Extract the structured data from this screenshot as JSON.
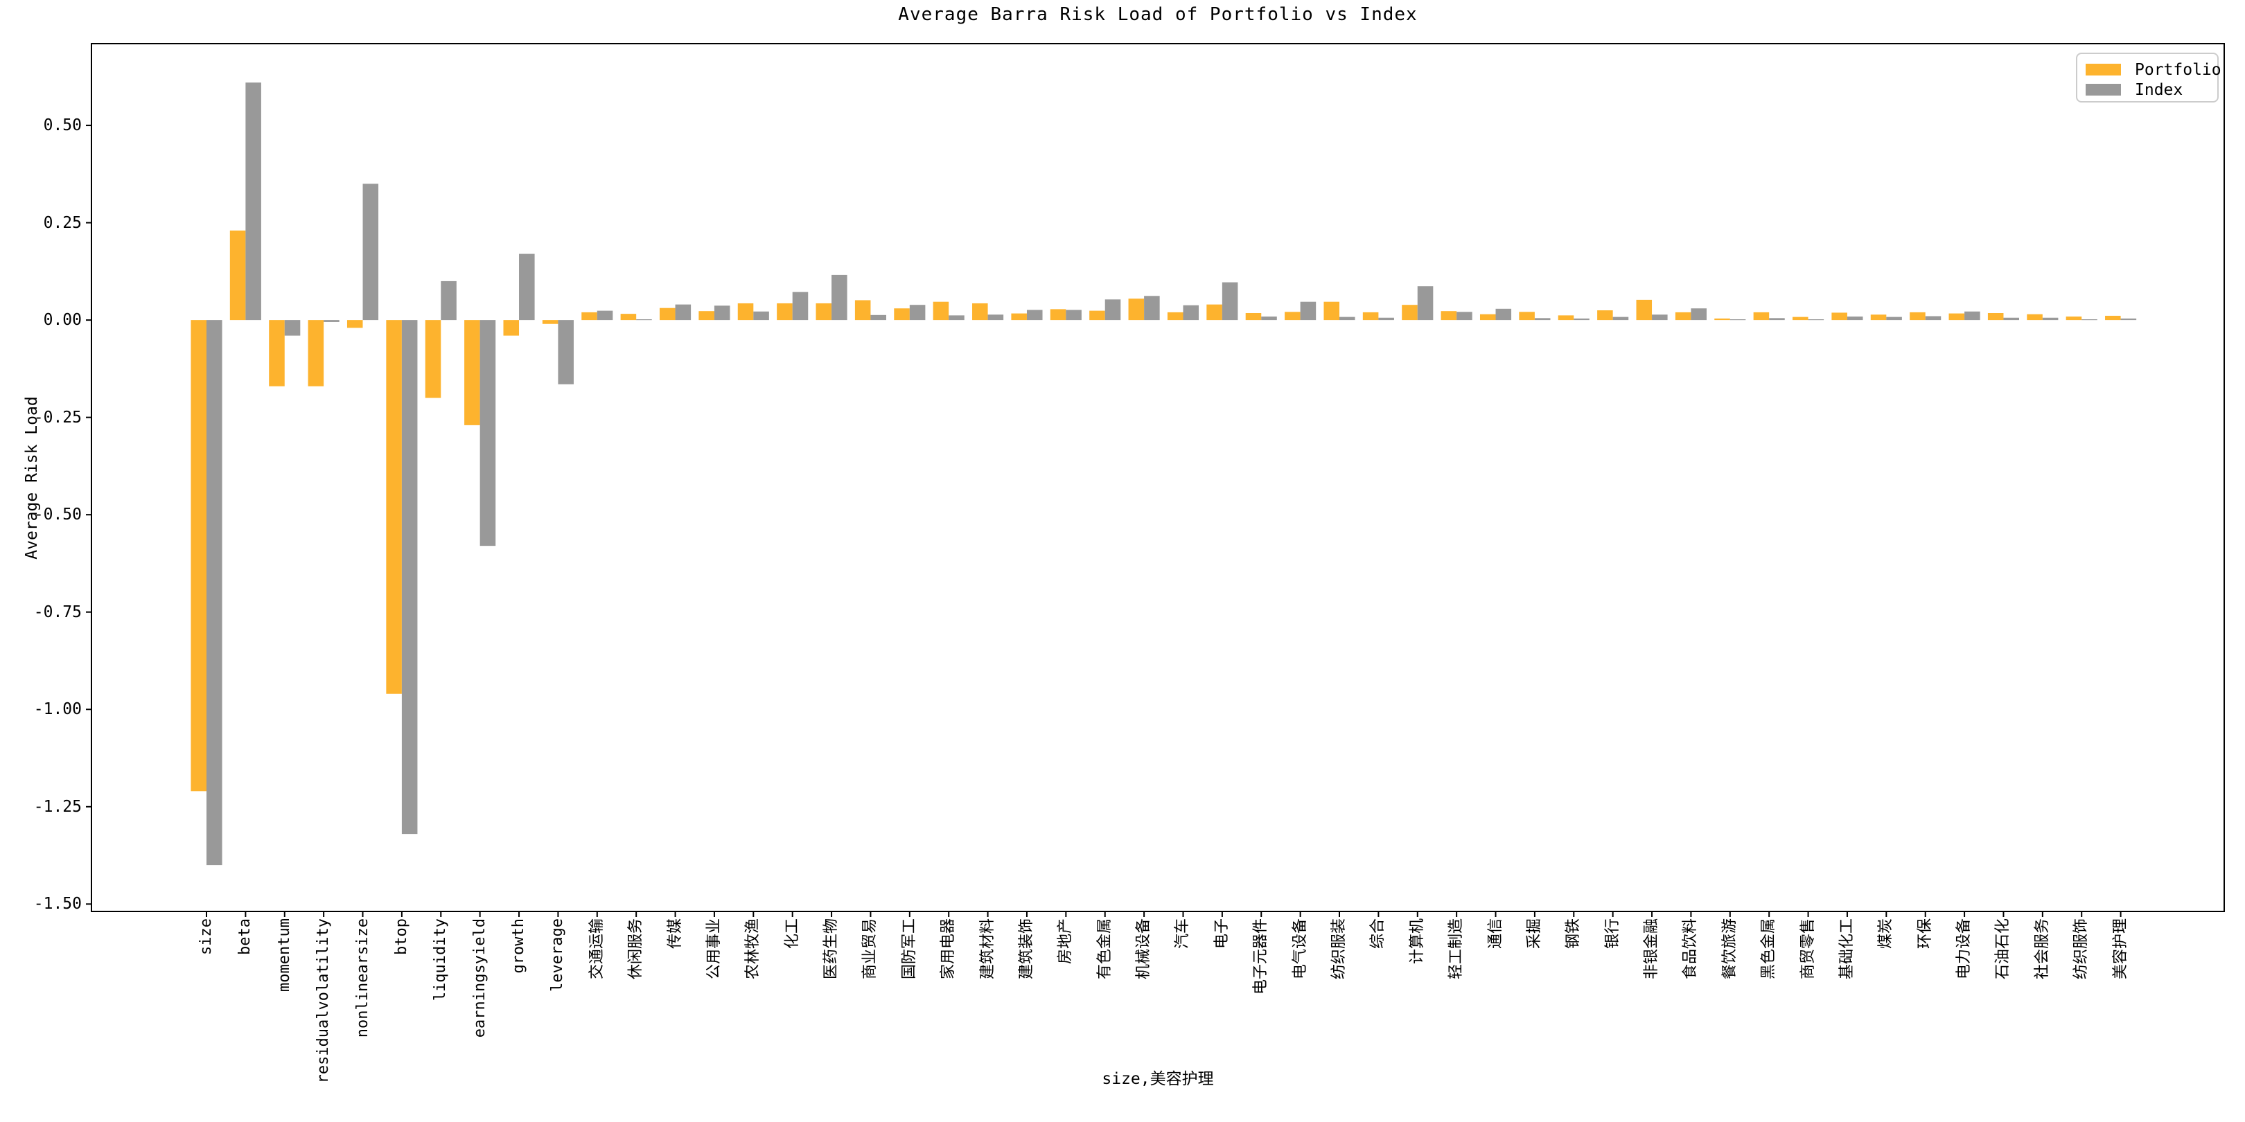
{
  "figure": {
    "title": "Average Barra Risk Load of Portfolio vs Index",
    "xlabel": "size,美容护理",
    "ylabel": "Average Risk Load",
    "background": "#ffffff"
  },
  "legend": {
    "items": [
      {
        "label": "Portfolio",
        "color": "#FDB32E"
      },
      {
        "label": "Index",
        "color": "#999999"
      }
    ]
  },
  "chart_data": {
    "type": "bar",
    "title": "Average Barra Risk Load of Portfolio vs Index",
    "xlabel": "size,美容护理",
    "ylabel": "Average Risk Load",
    "ylim": [
      -1.519,
      0.71
    ],
    "yticks": [
      0.5,
      0.25,
      0.0,
      -0.25,
      -0.5,
      -0.75,
      -1.0,
      -1.25,
      -1.5
    ],
    "ytick_labels": [
      "0.50",
      "0.25",
      "0.00",
      "-0.25",
      "-0.50",
      "-0.75",
      "-1.00",
      "-1.25",
      "-1.50"
    ],
    "grid": false,
    "legend_position": "upper right",
    "bar_group_width": 0.8,
    "categories": [
      "size",
      "beta",
      "momentum",
      "residualvolatility",
      "nonlinearsize",
      "btop",
      "liquidity",
      "earningsyield",
      "growth",
      "leverage",
      "交通运输",
      "休闲服务",
      "传媒",
      "公用事业",
      "农林牧渔",
      "化工",
      "医药生物",
      "商业贸易",
      "国防军工",
      "家用电器",
      "建筑材料",
      "建筑装饰",
      "房地产",
      "有色金属",
      "机械设备",
      "汽车",
      "电子",
      "电子元器件",
      "电气设备",
      "纺织服装",
      "综合",
      "计算机",
      "轻工制造",
      "通信",
      "采掘",
      "钢铁",
      "银行",
      "非银金融",
      "食品饮料",
      "餐饮旅游",
      "黑色金属",
      "商贸零售",
      "基础化工",
      "煤炭",
      "环保",
      "电力设备",
      "石油石化",
      "社会服务",
      "纺织服饰",
      "美容护理"
    ],
    "series": [
      {
        "name": "Portfolio",
        "color": "#FDB32E",
        "values": [
          -1.21,
          0.23,
          -0.17,
          -0.17,
          -0.02,
          -0.96,
          -0.2,
          -0.27,
          -0.04,
          -0.01,
          0.02,
          0.016,
          0.031,
          0.023,
          0.043,
          0.043,
          0.043,
          0.051,
          0.03,
          0.047,
          0.043,
          0.017,
          0.028,
          0.024,
          0.055,
          0.02,
          0.04,
          0.018,
          0.021,
          0.047,
          0.02,
          0.039,
          0.023,
          0.015,
          0.021,
          0.012,
          0.025,
          0.052,
          0.02,
          0.004,
          0.02,
          0.008,
          0.019,
          0.014,
          0.02,
          0.017,
          0.018,
          0.015,
          0.009,
          0.011
        ]
      },
      {
        "name": "Index",
        "color": "#999999",
        "values": [
          -1.4,
          0.61,
          -0.04,
          -0.005,
          0.35,
          -1.32,
          0.1,
          -0.58,
          0.17,
          -0.165,
          0.024,
          0.002,
          0.04,
          0.037,
          0.022,
          0.072,
          0.116,
          0.013,
          0.039,
          0.012,
          0.014,
          0.026,
          0.026,
          0.053,
          0.062,
          0.038,
          0.097,
          0.009,
          0.047,
          0.008,
          0.006,
          0.087,
          0.021,
          0.029,
          0.005,
          0.004,
          0.008,
          0.014,
          0.03,
          0.002,
          0.005,
          0.002,
          0.009,
          0.008,
          0.01,
          0.022,
          0.006,
          0.006,
          0.002,
          0.004
        ]
      }
    ]
  }
}
